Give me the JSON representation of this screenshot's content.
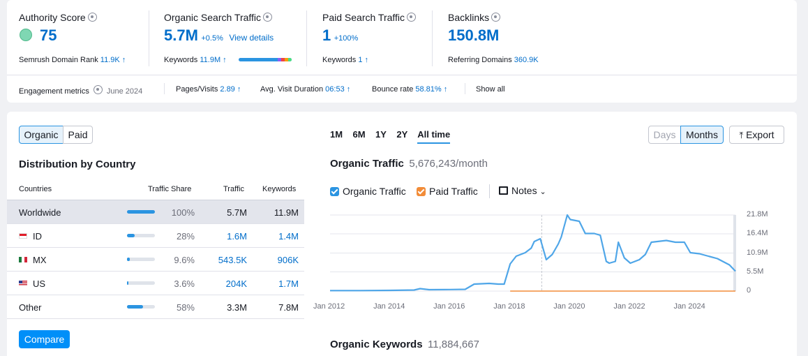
{
  "summary": {
    "authority": {
      "label": "Authority Score",
      "value": "75",
      "sub_label": "Semrush Domain Rank",
      "sub_value": "11.9K ↑"
    },
    "organic": {
      "label": "Organic Search Traffic",
      "value": "5.7M",
      "delta": "+0.5%",
      "link": "View details",
      "sub_label": "Keywords",
      "sub_value": "11.9M ↑"
    },
    "paid": {
      "label": "Paid Search Traffic",
      "value": "1",
      "delta": "+100%",
      "sub_label": "Keywords",
      "sub_value": "1 ↑"
    },
    "backlinks": {
      "label": "Backlinks",
      "value": "150.8M",
      "sub_label": "Referring Domains",
      "sub_value": "360.9K"
    }
  },
  "engagement": {
    "label": "Engagement metrics",
    "date": "June 2024",
    "pages_label": "Pages/Visits",
    "pages_value": "2.89 ↑",
    "duration_label": "Avg. Visit Duration",
    "duration_value": "06:53 ↑",
    "bounce_label": "Bounce rate",
    "bounce_value": "58.81% ↑",
    "show_all": "Show all"
  },
  "left": {
    "tabs": [
      "Organic",
      "Paid"
    ],
    "title": "Distribution by Country",
    "headers": [
      "Countries",
      "Traffic Share",
      "Traffic",
      "Keywords"
    ],
    "rows": [
      {
        "country": "Worldwide",
        "share": "100%",
        "share_pct": 100,
        "traffic": "5.7M",
        "keywords": "11.9M",
        "flag": ""
      },
      {
        "country": "ID",
        "share": "28%",
        "share_pct": 28,
        "traffic": "1.6M",
        "keywords": "1.4M",
        "flag": "indonesia-flag"
      },
      {
        "country": "MX",
        "share": "9.6%",
        "share_pct": 9.6,
        "traffic": "543.5K",
        "keywords": "906K",
        "flag": "mexico-flag"
      },
      {
        "country": "US",
        "share": "3.6%",
        "share_pct": 3.6,
        "traffic": "204K",
        "keywords": "1.7M",
        "flag": "usa-flag"
      },
      {
        "country": "Other",
        "share": "58%",
        "share_pct": 58,
        "traffic": "3.3M",
        "keywords": "7.8M",
        "flag": ""
      }
    ],
    "compare": "Compare"
  },
  "right": {
    "ranges": [
      "1M",
      "6M",
      "1Y",
      "2Y",
      "All time"
    ],
    "active_range": "All time",
    "granularity": [
      "Days",
      "Months"
    ],
    "export": "Export",
    "traffic_title": "Organic Traffic",
    "traffic_value": "5,676,243/month",
    "legend": [
      "Organic Traffic",
      "Paid Traffic"
    ],
    "notes": "Notes",
    "keywords_title": "Organic Keywords",
    "keywords_value": "11,884,667"
  },
  "chart_data": {
    "type": "line",
    "title": "Organic Traffic",
    "x_ticks": [
      "Jan 2012",
      "Jan 2014",
      "Jan 2016",
      "Jan 2018",
      "Jan 2020",
      "Jan 2022",
      "Jan 2024"
    ],
    "y_ticks": [
      "21.8M",
      "16.4M",
      "10.9M",
      "5.5M",
      "0"
    ],
    "ylim": [
      0,
      21.8
    ],
    "y_unit": "M",
    "series": [
      {
        "name": "Organic Traffic",
        "color": "#4fa6e8",
        "points": [
          [
            2012.0,
            0.15
          ],
          [
            2013.0,
            0.15
          ],
          [
            2014.0,
            0.2
          ],
          [
            2014.8,
            0.3
          ],
          [
            2015.0,
            0.7
          ],
          [
            2015.3,
            0.4
          ],
          [
            2016.0,
            0.45
          ],
          [
            2016.5,
            0.5
          ],
          [
            2016.8,
            2.0
          ],
          [
            2017.3,
            2.2
          ],
          [
            2017.6,
            2.0
          ],
          [
            2017.8,
            2.0
          ],
          [
            2018.0,
            7.8
          ],
          [
            2018.2,
            10.0
          ],
          [
            2018.5,
            11.0
          ],
          [
            2018.7,
            12.3
          ],
          [
            2018.8,
            14.2
          ],
          [
            2019.0,
            15.0
          ],
          [
            2019.2,
            9.0
          ],
          [
            2019.4,
            10.5
          ],
          [
            2019.6,
            13.5
          ],
          [
            2019.7,
            15.5
          ],
          [
            2019.9,
            21.8
          ],
          [
            2020.0,
            20.5
          ],
          [
            2020.3,
            20.0
          ],
          [
            2020.5,
            16.5
          ],
          [
            2020.8,
            16.5
          ],
          [
            2021.0,
            16.0
          ],
          [
            2021.2,
            8.5
          ],
          [
            2021.3,
            8.0
          ],
          [
            2021.5,
            8.5
          ],
          [
            2021.6,
            14.0
          ],
          [
            2021.8,
            9.5
          ],
          [
            2022.0,
            8.0
          ],
          [
            2022.3,
            9.0
          ],
          [
            2022.5,
            10.5
          ],
          [
            2022.7,
            14.0
          ],
          [
            2022.9,
            14.2
          ],
          [
            2023.2,
            14.5
          ],
          [
            2023.5,
            14.0
          ],
          [
            2023.8,
            14.0
          ],
          [
            2024.0,
            11.0
          ],
          [
            2024.3,
            10.7
          ],
          [
            2024.6,
            10.0
          ],
          [
            2024.9,
            9.3
          ],
          [
            2025.3,
            7.5
          ],
          [
            2025.5,
            5.7
          ]
        ]
      },
      {
        "name": "Paid Traffic",
        "color": "#f28c38",
        "points": [
          [
            2018.0,
            0
          ],
          [
            2025.5,
            0
          ]
        ]
      }
    ]
  }
}
